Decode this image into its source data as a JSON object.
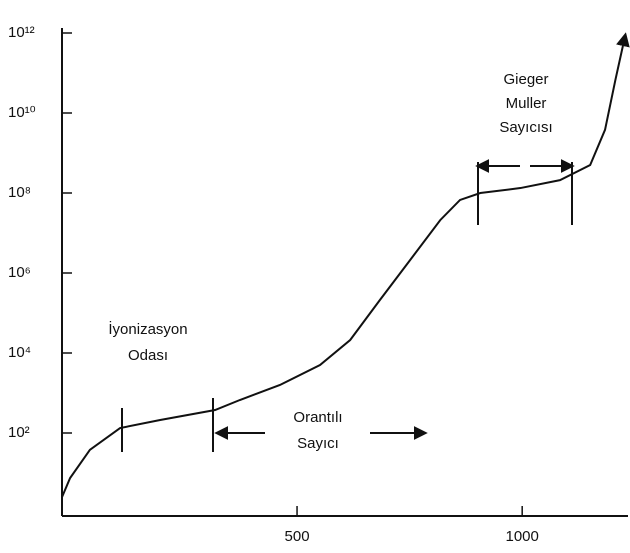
{
  "chart_data": {
    "type": "line",
    "log_y": true,
    "x": [
      -22,
      -4,
      40,
      107,
      196,
      318,
      373,
      462,
      551,
      618,
      684,
      751,
      818,
      862,
      907,
      996,
      1084,
      1151,
      1184,
      1207,
      1229
    ],
    "series": [
      {
        "color": "#111111",
        "values": [
          2.5,
          7.5,
          38,
          133,
          211,
          376,
          668,
          1585,
          5012,
          21135,
          211350,
          2100000,
          21000000,
          67000000,
          100000000,
          133000000,
          210000000,
          500000000,
          3800000000,
          67000000000,
          890000000000
        ]
      }
    ],
    "xlim": [
      -22,
      1235
    ],
    "xticks": [
      500,
      1000
    ],
    "ylim": [
      1,
      1000000000000
    ],
    "yticks": [
      {
        "value": 100,
        "label": "10²"
      },
      {
        "value": 10000,
        "label": "10⁴"
      },
      {
        "value": 1000000,
        "label": "10⁶"
      },
      {
        "value": 100000000,
        "label": "10⁸"
      },
      {
        "value": 10000000000,
        "label": "10¹⁰"
      },
      {
        "value": 1000000000000,
        "label": "10¹²"
      }
    ],
    "annotations": [
      [
        "Gieger",
        "Muller",
        "Sayıcısı"
      ],
      [
        "İyonizasyon",
        "Odası"
      ],
      [
        "Orantılı",
        "Sayıcı"
      ]
    ]
  }
}
